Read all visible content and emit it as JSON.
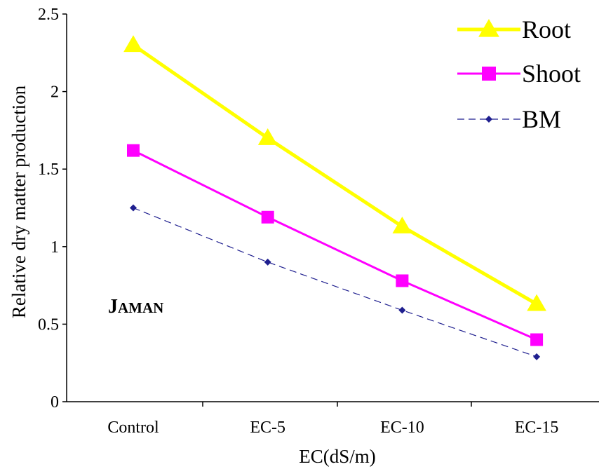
{
  "chart_data": {
    "type": "line",
    "categories": [
      "Control",
      "EC-5",
      "EC-10",
      "EC-15"
    ],
    "series": [
      {
        "name": "Root",
        "values": [
          2.3,
          1.7,
          1.13,
          0.63
        ],
        "color": "#ffff00",
        "marker": "triangle",
        "line_style": "solid"
      },
      {
        "name": "Shoot",
        "values": [
          1.62,
          1.19,
          0.78,
          0.4
        ],
        "color": "#ff00ff",
        "marker": "square",
        "line_style": "solid"
      },
      {
        "name": "BM",
        "values": [
          1.25,
          0.9,
          0.59,
          0.29
        ],
        "color": "#1f1f8f",
        "marker": "diamond",
        "line_style": "dashed"
      }
    ],
    "ylim": [
      0,
      2.5
    ],
    "yticks": [
      "0",
      "0.5",
      "1",
      "1.5",
      "2",
      "2.5"
    ],
    "xlabel": "EC(dS/m)",
    "ylabel": "Relative dry matter production",
    "annotation": {
      "first": "J",
      "rest": "AMAN"
    },
    "legend_position": "top-right",
    "grid": false
  }
}
